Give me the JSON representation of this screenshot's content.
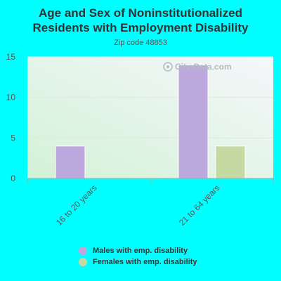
{
  "header": {
    "title_line1": "Age and Sex of Noninstitutionalized",
    "title_line2": "Residents with Employment Disability",
    "subtitle": "Zip code 48853"
  },
  "watermark": "City-Data.com",
  "colors": {
    "background": "#00ffff",
    "males": "#bca8dc",
    "females": "#c5d9a2"
  },
  "legend": {
    "males_label": "Males with emp. disability",
    "females_label": "Females with emp. disability"
  },
  "chart_data": {
    "type": "bar",
    "categories": [
      "16 to 20 years",
      "21 to 64 years"
    ],
    "series": [
      {
        "name": "Males with emp. disability",
        "values": [
          4,
          14
        ]
      },
      {
        "name": "Females with emp. disability",
        "values": [
          0,
          4
        ]
      }
    ],
    "yticks": [
      0,
      5,
      10,
      15
    ],
    "ylim": [
      0,
      15
    ],
    "grid": true,
    "legend_position": "bottom"
  }
}
